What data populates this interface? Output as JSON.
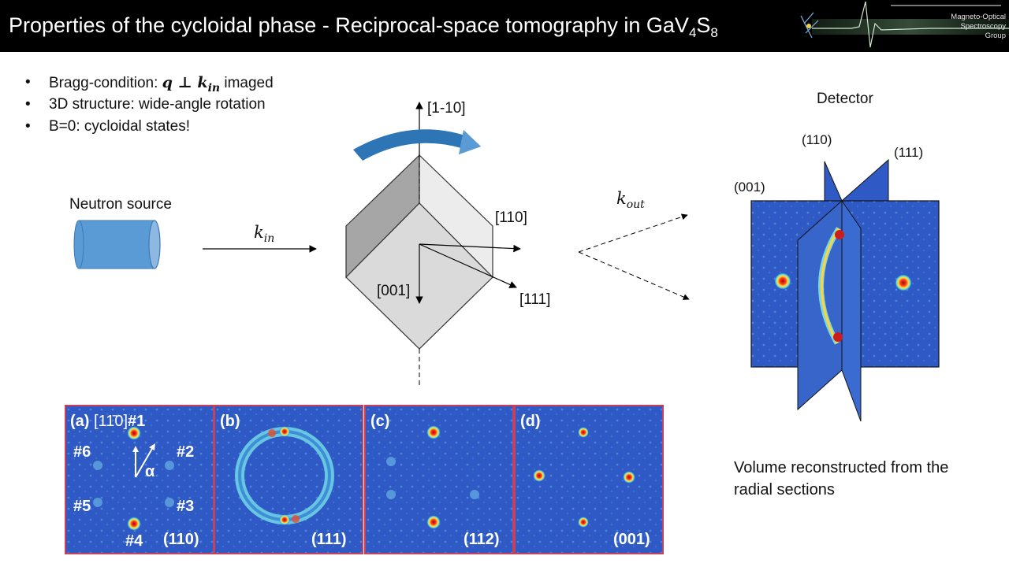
{
  "header": {
    "title_main": "Properties of the cycloidal phase - Reciprocal-space tomography in GaV",
    "title_sub1": "4",
    "title_mid": "S",
    "title_sub2": "8",
    "logo_line1": "Magneto-Optical",
    "logo_line2": "Spectroscopy",
    "logo_line3": "Group"
  },
  "bullets": [
    {
      "text": "Bragg-condition: ",
      "math": "q ⊥ k",
      "math_sub": "in",
      "tail": " imaged"
    },
    {
      "text": "3D structure: wide-angle rotation"
    },
    {
      "text": "B=0: cycloidal states!"
    }
  ],
  "setup": {
    "neutron_source": "Neutron source",
    "k_in": "k",
    "k_in_sub": "in",
    "k_out": "k",
    "k_out_sub": "out",
    "axis_1m10": "[1-10]",
    "axis_110": "[110]",
    "axis_001": "[001]",
    "axis_111": "[111]"
  },
  "detector": {
    "title": "Detector",
    "plane_110": "(110)",
    "plane_111": "(111)",
    "plane_001": "(001)"
  },
  "panels": [
    {
      "letter": "(a)",
      "direction": "[11̄0]",
      "plane": "(110)",
      "spots": [
        "#1",
        "#2",
        "#3",
        "#4",
        "#5",
        "#6"
      ],
      "alpha": "α"
    },
    {
      "letter": "(b)",
      "plane": "(111)"
    },
    {
      "letter": "(c)",
      "plane": "(112)"
    },
    {
      "letter": "(d)",
      "plane": "(001)"
    }
  ],
  "caption": {
    "line1": "Volume reconstructed from the",
    "line2": "radial sections"
  },
  "colors": {
    "header_bg": "#000000",
    "map_background": "#2f59c4",
    "panel_border": "#c7415d",
    "cylinder": "#5b9bd5",
    "rotation_arrow": "#2e75b6"
  }
}
